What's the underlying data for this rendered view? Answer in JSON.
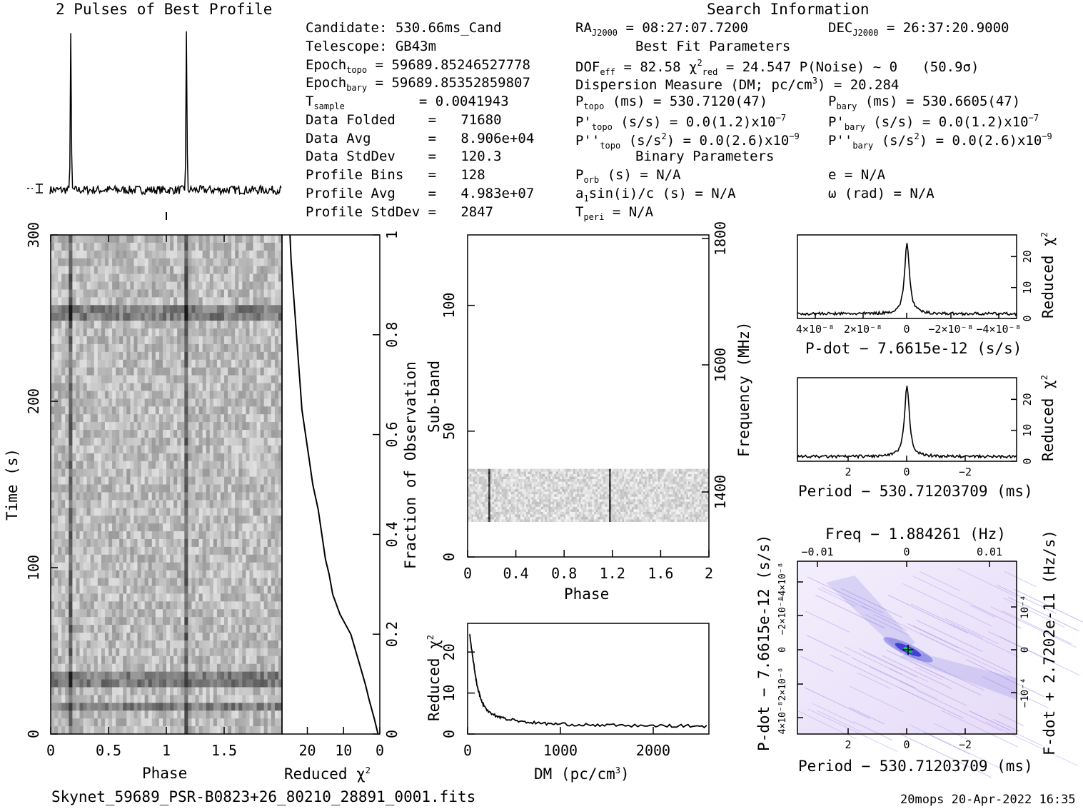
{
  "footer": {
    "filename": "Skynet_59689_PSR-B0823+26_80210_28891_0001.fits",
    "stamp": "20mops 20-Apr-2022 16:35"
  },
  "header": {
    "profile_title": "2 Pulses of Best Profile",
    "search_title": "Search Information"
  },
  "info": {
    "candidate": "Candidate:  530.66ms_Cand",
    "telescope": "Telescope:  GB43m",
    "epoch_topo": "= 59689.85246527778",
    "epoch_bary": "= 59689.85352859807",
    "t_sample_label": "T",
    "t_sample_sub": "sample",
    "t_sample_val": "=   0.0041943",
    "data_folded": "Data Folded    =   71680",
    "data_avg": "Data Avg       =   8.906e+04",
    "data_stddev": "Data StdDev    =   120.3",
    "profile_bins": "Profile Bins   =   128",
    "profile_avg": "Profile Avg    =   4.983e+07",
    "profile_stddev": "Profile StdDev =   2847"
  },
  "params": {
    "ra": "= 08:27:07.7200",
    "dec": "= 26:37:20.9000",
    "best_fit": "Best Fit Parameters",
    "dof": "= 82.58",
    "chi2": "= 24.547",
    "pnoise": "P(Noise) ~ 0   (50.9σ)",
    "dm_a": "Dispersion Measure (DM; pc/cm",
    "dm_b": ") = 20.284",
    "ptopo": "(ms) =  530.7120(47)",
    "pbary": "(ms) =  530.6605(47)",
    "pdtopo": "(s/s) = 0.0(1.2)x10",
    "pdbary": "(s/s) = 0.0(1.2)x10",
    "pddtopo": "(s/s",
    "pddtopo_b": ") = 0.0(2.6)x10",
    "pddbary": "(s/s",
    "pddbary_b": ") = 0.0(2.6)x10",
    "binary": "Binary Parameters",
    "porb": "(s) = N/A",
    "asini": "sin(i)/c (s) = N/A",
    "tperi": "= N/A",
    "ecc": "e = N/A",
    "omega": "ω (rad) = N/A"
  },
  "colors": {
    "grey_scale": "#000000",
    "ppdot_blue": "#2a2ad0",
    "ppdot_center": "#00cc66"
  },
  "chart_data": [
    {
      "type": "line",
      "name": "pulse-profile",
      "title": "2 Pulses of Best Profile",
      "x": [
        0,
        2
      ],
      "peaks_phase": [
        0.18,
        1.18
      ]
    },
    {
      "type": "heatmap",
      "name": "time-phase",
      "xlabel": "Phase",
      "ylabel": "Time (s)",
      "xlim": [
        0,
        2
      ],
      "ylim": [
        0,
        300
      ],
      "xticks": [
        "0",
        "0.5",
        "1",
        "1.5"
      ],
      "yticks": [
        "0",
        "100",
        "200",
        "300"
      ]
    },
    {
      "type": "line",
      "name": "reduced-chi2-vs-fraction",
      "xlabel": "Reduced χ²",
      "ylabel": "Fraction of Observation",
      "xticks": [
        "20",
        "10",
        "0"
      ],
      "yticks": [
        "0",
        "0.2",
        "0.4",
        "0.6",
        "0.8",
        "1"
      ],
      "x": [
        0.5,
        1.5,
        3,
        4,
        6,
        8,
        11,
        13,
        14,
        15,
        16,
        17,
        18.5,
        19.5,
        20.5,
        21.5,
        22,
        22.5,
        23,
        23.5,
        24,
        24.5,
        24.8
      ],
      "y": [
        0,
        0.03,
        0.07,
        0.1,
        0.15,
        0.2,
        0.24,
        0.28,
        0.32,
        0.35,
        0.4,
        0.45,
        0.5,
        0.55,
        0.6,
        0.65,
        0.7,
        0.75,
        0.8,
        0.85,
        0.9,
        0.95,
        1.0
      ]
    },
    {
      "type": "heatmap",
      "name": "subband-phase",
      "xlabel": "Phase",
      "ylabel": "Sub-band",
      "ylabel2": "Frequency (MHz)",
      "xticks": [
        "0",
        "0.4",
        "0.8",
        "1.2",
        "1.6",
        "2"
      ],
      "yticks": [
        "0",
        "50",
        "100"
      ],
      "yticks2": [
        "1400",
        "1600",
        "1800"
      ],
      "band_rows": [
        14,
        35
      ]
    },
    {
      "type": "line",
      "name": "dm-curve",
      "xlabel": "DM (pc/cm³)",
      "ylabel": "Reduced χ²",
      "xticks": [
        "0",
        "1000",
        "2000"
      ],
      "yticks": [
        "0",
        "10",
        "20"
      ],
      "x": [
        20,
        60,
        100,
        150,
        200,
        300,
        400,
        600,
        800,
        1000,
        1300,
        1600,
        2000,
        2300,
        2600
      ],
      "y": [
        24.5,
        18,
        12,
        8,
        6,
        4.5,
        3.8,
        3.0,
        2.6,
        2.4,
        2.2,
        2.1,
        2.0,
        2.0,
        1.9
      ]
    },
    {
      "type": "line",
      "name": "pdot-curve",
      "xlabel": "P-dot − 7.6615e-12 (s/s)",
      "ylabel": "Reduced χ²",
      "xticks": [
        "4×10⁻⁸",
        "2×10⁻⁸",
        "0",
        "−2×10⁻⁸",
        "−4×10⁻⁸"
      ],
      "yticks": [
        "0",
        "10",
        "20"
      ],
      "peak": 24.5,
      "baseline": 1.5
    },
    {
      "type": "line",
      "name": "period-curve",
      "xlabel": "Period − 530.71203709 (ms)",
      "ylabel": "Reduced χ²",
      "xticks": [
        "2",
        "0",
        "−2"
      ],
      "yticks": [
        "0",
        "10",
        "20"
      ],
      "peak": 24.5,
      "baseline": 1.5
    },
    {
      "type": "heatmap",
      "name": "p-pdot-plane",
      "title": "Freq − 1.884261 (Hz)",
      "xlabel": "Period − 530.71203709 (ms)",
      "ylabel": "P-dot − 7.6615e-12 (s/s)",
      "ylabel2": "F-dot + 2.7202e-11 (Hz/s)",
      "xticks": [
        "2",
        "0",
        "−2"
      ],
      "xticks_top": [
        "−0.01",
        "0",
        "0.01"
      ],
      "yticks": [
        "4×10⁻⁸",
        "2×10⁻⁸",
        "0",
        "−2×10⁻⁸",
        "−4×10⁻⁸"
      ],
      "yticks2": [
        "−10⁻⁴",
        "0",
        "10⁻⁴"
      ]
    }
  ]
}
